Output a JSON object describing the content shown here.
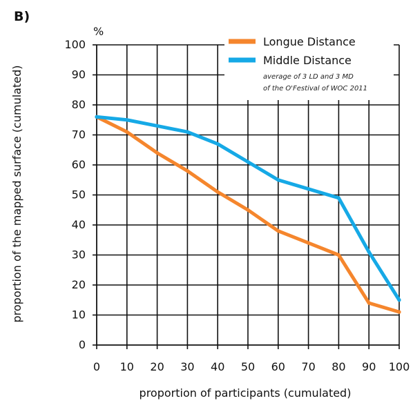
{
  "chart_data": {
    "type": "line",
    "panel_label": "B)",
    "title": "",
    "xlabel": "proportion of participants (cumulated)",
    "ylabel": "proportion of the mapped surface (cumulated)",
    "y_unit_label": "%",
    "x": [
      0,
      10,
      20,
      30,
      40,
      50,
      60,
      70,
      80,
      90,
      100
    ],
    "xlim": [
      0,
      100
    ],
    "ylim": [
      0,
      100
    ],
    "xticks": [
      "0",
      "10",
      "20",
      "30",
      "40",
      "50",
      "60",
      "70",
      "80",
      "90",
      "100"
    ],
    "yticks": [
      "0",
      "10",
      "20",
      "30",
      "40",
      "50",
      "60",
      "70",
      "80",
      "90",
      "100"
    ],
    "grid": true,
    "legend_position": "top-right",
    "series": [
      {
        "name": "Longue Distance",
        "color": "#F5862D",
        "values": [
          76,
          71,
          64,
          58,
          51,
          45,
          38,
          34,
          30,
          14,
          11
        ]
      },
      {
        "name": "Middle Distance",
        "color": "#16A9E6",
        "values": [
          76,
          75,
          73,
          71,
          67,
          61,
          55,
          52,
          49,
          31,
          15
        ]
      }
    ],
    "legend_note": [
      "average of 3 LD and 3 MD",
      "of the O'Festival of WOC 2011"
    ]
  }
}
